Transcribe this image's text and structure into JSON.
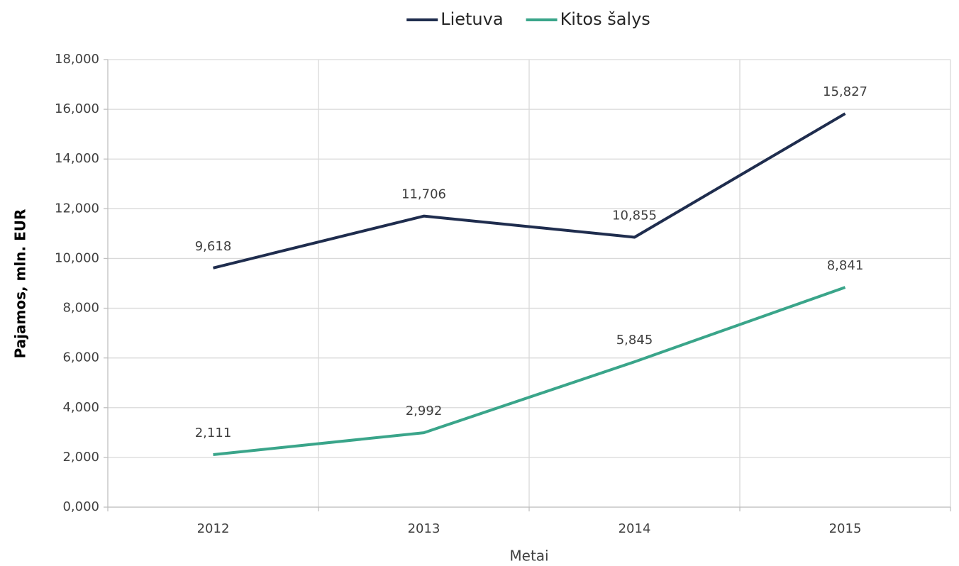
{
  "chart_data": {
    "type": "line",
    "categories": [
      "2012",
      "2013",
      "2014",
      "2015"
    ],
    "series": [
      {
        "name": "Lietuva",
        "color": "#1f2d4e",
        "values": [
          9618,
          11706,
          10855,
          15827
        ],
        "value_labels": [
          "9,618",
          "11,706",
          "10,855",
          "15,827"
        ]
      },
      {
        "name": "Kitos šalys",
        "color": "#3aa58a",
        "values": [
          2111,
          2992,
          5845,
          8841
        ],
        "value_labels": [
          "2,111",
          "2,992",
          "5,845",
          "8,841"
        ]
      }
    ],
    "x_label": "Metai",
    "y_label": "Pajamos, mln. EUR",
    "ylim": [
      0,
      18000
    ],
    "yticks": [
      {
        "value": 0,
        "label": "0,000"
      },
      {
        "value": 2000,
        "label": "2,000"
      },
      {
        "value": 4000,
        "label": "4,000"
      },
      {
        "value": 6000,
        "label": "6,000"
      },
      {
        "value": 8000,
        "label": "8,000"
      },
      {
        "value": 10000,
        "label": "10,000"
      },
      {
        "value": 12000,
        "label": "12,000"
      },
      {
        "value": 14000,
        "label": "14,000"
      },
      {
        "value": 16000,
        "label": "16,000"
      },
      {
        "value": 18000,
        "label": "18,000"
      }
    ],
    "grid": true,
    "legend": "top"
  }
}
